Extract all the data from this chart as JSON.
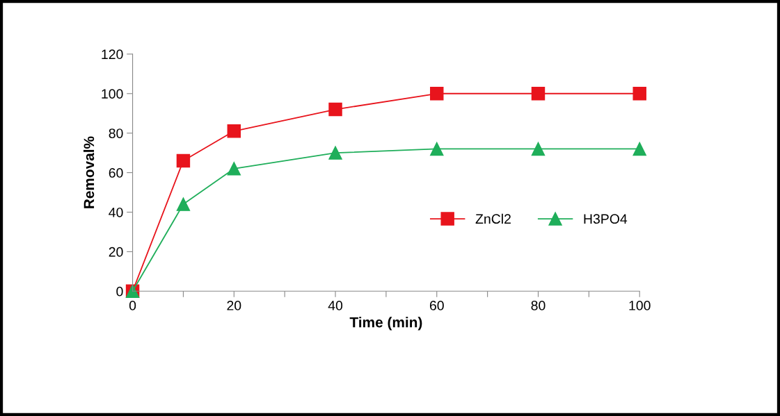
{
  "chart_data": {
    "type": "line",
    "xlabel": "Time (min)",
    "ylabel": "Removal%",
    "x": [
      0,
      10,
      20,
      40,
      60,
      80,
      100
    ],
    "series": [
      {
        "name": "ZnCl2",
        "color": "#e8141c",
        "marker": "square",
        "values": [
          0,
          66,
          81,
          92,
          100,
          100,
          100
        ]
      },
      {
        "name": "H3PO4",
        "color": "#1fae5a",
        "marker": "triangle",
        "values": [
          0,
          44,
          62,
          70,
          72,
          72,
          72
        ]
      }
    ],
    "xlim": [
      0,
      100
    ],
    "ylim": [
      0,
      120
    ],
    "xticks": [
      0,
      {
        "value": 10,
        "label": null
      },
      20,
      {
        "value": 30,
        "label": null
      },
      40,
      {
        "value": 50,
        "label": null
      },
      60,
      {
        "value": 70,
        "label": null
      },
      80,
      {
        "value": 90,
        "label": null
      },
      100
    ],
    "yticks": [
      0,
      20,
      40,
      60,
      80,
      100,
      120
    ],
    "grid": false,
    "legend": "right",
    "line_style": "solid"
  }
}
